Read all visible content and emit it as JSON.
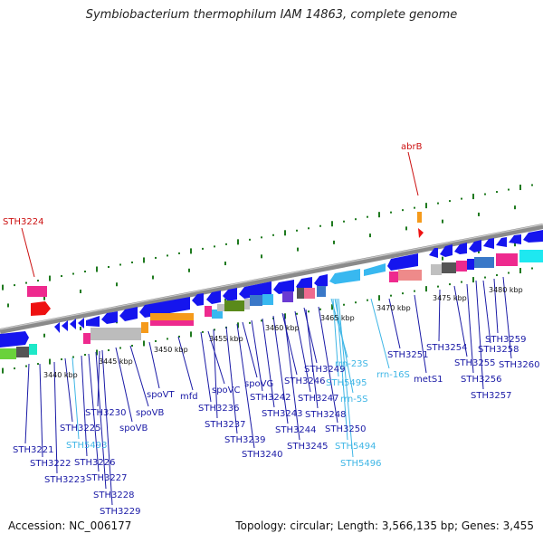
{
  "title": "Symbiobacterium thermophilum IAM 14863, complete genome",
  "footer": {
    "accession": "Accession: NC_006177",
    "summary": "Topology: circular; Length: 3,566,135 bp; Genes: 3,455"
  },
  "colors": {
    "gene_label": "#1a1aa6",
    "rna_label": "#3fb6e6",
    "highlight_label": "#cc1111",
    "tick": "#1f7a1f",
    "backbone": "#8a8a8a"
  },
  "scale_labels": [
    "3440 kbp",
    "3445 kbp",
    "3450 kbp",
    "3455 kbp",
    "3460 kbp",
    "3465 kbp",
    "3470 kbp",
    "3475 kbp",
    "3480 kbp"
  ],
  "highlight_labels": [
    "STH3224",
    "abrB"
  ],
  "gene_labels": [
    "STH3221",
    "STH3222",
    "STH3223",
    "STH3225",
    "STH5493",
    "STH3226",
    "STH3227",
    "STH3228",
    "STH3229",
    "STH3230",
    "spoVB",
    "spoVB",
    "spoVT",
    "mfd",
    "spoVC",
    "STH3236",
    "STH3237",
    "STH3239",
    "STH3240",
    "spoVG",
    "STH3242",
    "STH3243",
    "STH3244",
    "STH3245",
    "STH3246",
    "STH3247",
    "STH3248",
    "STH3249",
    "STH3250",
    "rrn-23S",
    "STH5495",
    "rrn-5S",
    "rrn-16S",
    "STH5494",
    "STH5496",
    "STH3251",
    "metS1",
    "STH3254",
    "STH3255",
    "STH3256",
    "STH3257",
    "STH3258",
    "STH3259",
    "STH3260"
  ]
}
